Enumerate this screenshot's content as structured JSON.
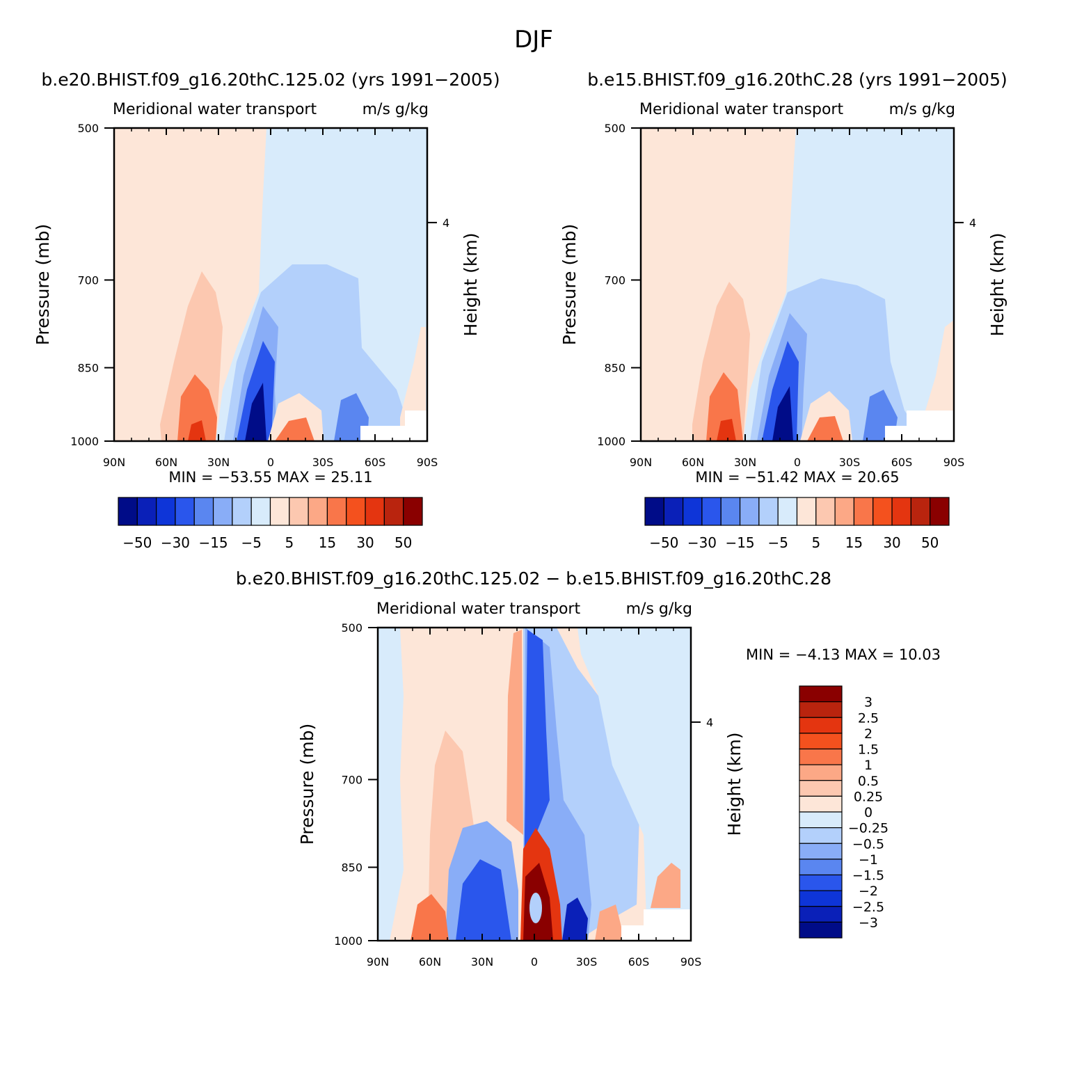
{
  "figure": {
    "title": "DJF"
  },
  "colors": {
    "pos": [
      "#fde6d8",
      "#fcc8b0",
      "#fca886",
      "#f9764a",
      "#f4511e",
      "#e43510",
      "#b9240e",
      "#8a0000"
    ],
    "neg": [
      "#d8ebfb",
      "#b3d0fb",
      "#89adf7",
      "#5a86f0",
      "#2a56ec",
      "#0e35d8",
      "#0a20b8",
      "#000c88"
    ]
  },
  "chart_data": [
    {
      "type": "heatmap",
      "title": "b.e20.BHIST.f09_g16.20thC.125.02 (yrs 1991−2005)",
      "left_string": "Meridional water transport",
      "right_string": "m/s g/kg",
      "xlabel": "",
      "ylabel": "Pressure (mb)",
      "ylabel_right": "Height (km)",
      "x_ticks": [
        "90N",
        "60N",
        "30N",
        "0",
        "30S",
        "60S",
        "90S"
      ],
      "y_ticks": [
        "500",
        "700",
        "850",
        "1000"
      ],
      "y_ticks_right": [
        "4"
      ],
      "xlim": [
        90,
        -90
      ],
      "ylim": [
        1000,
        500
      ],
      "stats": "MIN = −53.55   MAX =  25.11",
      "min": -53.55,
      "max": 25.11,
      "levels": [
        -50,
        -40,
        -30,
        -20,
        -15,
        -10,
        -5,
        0,
        5,
        10,
        15,
        20,
        30,
        40,
        50
      ],
      "colorbar_labels": [
        "−50",
        "−30",
        "−15",
        "−5",
        "5",
        "15",
        "30",
        "50"
      ],
      "features": [
        {
          "lat": 38,
          "p": 990,
          "value": 20
        },
        {
          "lat": 40,
          "p": 940,
          "value": 12
        },
        {
          "lat": 45,
          "p": 850,
          "value": 7
        },
        {
          "lat": 10,
          "p": 985,
          "value": -53.55
        },
        {
          "lat": 12,
          "p": 900,
          "value": -35
        },
        {
          "lat": 12,
          "p": 800,
          "value": -12
        },
        {
          "lat": -15,
          "p": 990,
          "value": 18
        },
        {
          "lat": -15,
          "p": 960,
          "value": 8
        },
        {
          "lat": -45,
          "p": 980,
          "value": -18
        },
        {
          "lat": -40,
          "p": 820,
          "value": -8
        },
        {
          "lat": -82,
          "p": 920,
          "value": 4
        }
      ]
    },
    {
      "type": "heatmap",
      "title": "b.e15.BHIST.f09_g16.20thC.28 (yrs 1991−2005)",
      "left_string": "Meridional water transport",
      "right_string": "m/s g/kg",
      "xlabel": "",
      "ylabel": "Pressure (mb)",
      "ylabel_right": "Height (km)",
      "x_ticks": [
        "90N",
        "60N",
        "30N",
        "0",
        "30S",
        "60S",
        "90S"
      ],
      "y_ticks": [
        "500",
        "700",
        "850",
        "1000"
      ],
      "y_ticks_right": [
        "4"
      ],
      "xlim": [
        90,
        -90
      ],
      "ylim": [
        1000,
        500
      ],
      "stats": "MIN = −51.42   MAX =  20.65",
      "min": -51.42,
      "max": 20.65,
      "levels": [
        -50,
        -40,
        -30,
        -20,
        -15,
        -10,
        -5,
        0,
        5,
        10,
        15,
        20,
        30,
        40,
        50
      ],
      "colorbar_labels": [
        "−50",
        "−30",
        "−15",
        "−5",
        "5",
        "15",
        "30",
        "50"
      ],
      "features": [
        {
          "lat": 38,
          "p": 990,
          "value": 18
        },
        {
          "lat": 40,
          "p": 940,
          "value": 11
        },
        {
          "lat": 10,
          "p": 985,
          "value": -51.42
        },
        {
          "lat": 12,
          "p": 900,
          "value": -33
        },
        {
          "lat": -15,
          "p": 990,
          "value": 16
        },
        {
          "lat": -45,
          "p": 980,
          "value": -17
        },
        {
          "lat": -40,
          "p": 820,
          "value": -7
        }
      ]
    },
    {
      "type": "heatmap",
      "title": "b.e20.BHIST.f09_g16.20thC.125.02 − b.e15.BHIST.f09_g16.20thC.28",
      "left_string": "Meridional water transport",
      "right_string": "m/s g/kg",
      "xlabel": "",
      "ylabel": "Pressure (mb)",
      "ylabel_right": "Height (km)",
      "x_ticks": [
        "90N",
        "60N",
        "30N",
        "0",
        "30S",
        "60S",
        "90S"
      ],
      "y_ticks": [
        "500",
        "700",
        "850",
        "1000"
      ],
      "y_ticks_right": [
        "4"
      ],
      "xlim": [
        90,
        -90
      ],
      "ylim": [
        1000,
        500
      ],
      "stats": "MIN =   −4.13   MAX =   10.03",
      "min": -4.13,
      "max": 10.03,
      "levels": [
        -3,
        -2.5,
        -2,
        -1.5,
        -1,
        -0.5,
        -0.25,
        0,
        0.25,
        0.5,
        1,
        1.5,
        2,
        2.5,
        3
      ],
      "colorbar_labels": [
        "3",
        "2.5",
        "2",
        "1.5",
        "1",
        "0.5",
        "0.25",
        "0",
        "−0.25",
        "−0.5",
        "−1",
        "−1.5",
        "−2",
        "−2.5",
        "−3"
      ],
      "features": [
        {
          "lat": -5,
          "p": 960,
          "value": 10.03
        },
        {
          "lat": 50,
          "p": 975,
          "value": 2
        },
        {
          "lat": 25,
          "p": 950,
          "value": -2
        },
        {
          "lat": 0,
          "p": 800,
          "value": -2.5
        },
        {
          "lat": -22,
          "p": 980,
          "value": -4.13
        },
        {
          "lat": -85,
          "p": 920,
          "value": 2
        }
      ]
    }
  ]
}
